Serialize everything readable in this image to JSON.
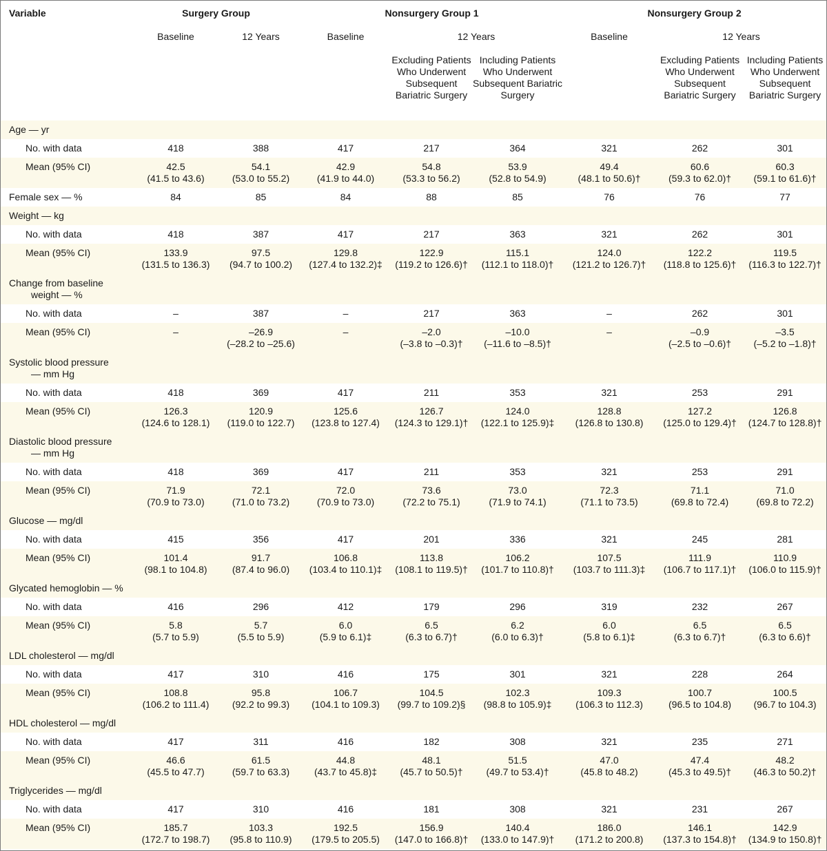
{
  "header": {
    "variable": "Variable",
    "groups": [
      "Surgery Group",
      "Nonsurgery Group 1",
      "Nonsurgery Group 2"
    ],
    "baseline": "Baseline",
    "twelve_years": "12 Years",
    "excluding": "Excluding Patients Who Underwent Subsequent Bariatric Surgery",
    "including": "Including Patients Who Underwent Subsequent Bariatric Surgery"
  },
  "rows": [
    {
      "type": "section",
      "label": "Age — yr"
    },
    {
      "type": "n",
      "label": "No. with data",
      "values": [
        "418",
        "388",
        "417",
        "217",
        "364",
        "321",
        "262",
        "301"
      ]
    },
    {
      "type": "mean",
      "label": "Mean (95% CI)",
      "values": [
        "42.5",
        "54.1",
        "42.9",
        "54.8",
        "53.9",
        "49.4",
        "60.6",
        "60.3"
      ],
      "ci": [
        "(41.5 to 43.6)",
        "(53.0 to 55.2)",
        "(41.9 to 44.0)",
        "(53.3 to 56.2)",
        "(52.8 to 54.9)",
        "(48.1 to 50.6)†",
        "(59.3 to 62.0)†",
        "(59.1 to 61.6)†"
      ]
    },
    {
      "type": "single",
      "label": "Female sex — %",
      "values": [
        "84",
        "85",
        "84",
        "88",
        "85",
        "76",
        "76",
        "77"
      ]
    },
    {
      "type": "section",
      "label": "Weight — kg"
    },
    {
      "type": "n",
      "label": "No. with data",
      "values": [
        "418",
        "387",
        "417",
        "217",
        "363",
        "321",
        "262",
        "301"
      ]
    },
    {
      "type": "mean",
      "label": "Mean (95% CI)",
      "values": [
        "133.9",
        "97.5",
        "129.8",
        "122.9",
        "115.1",
        "124.0",
        "122.2",
        "119.5"
      ],
      "ci": [
        "(131.5 to 136.3)",
        "(94.7 to 100.2)",
        "(127.4 to 132.2)‡",
        "(119.2 to 126.6)†",
        "(112.1 to 118.0)†",
        "(121.2 to 126.7)†",
        "(118.8 to 125.6)†",
        "(116.3 to 122.7)†"
      ]
    },
    {
      "type": "section2",
      "label": "Change from baseline",
      "label2": "weight — %"
    },
    {
      "type": "n",
      "label": "No. with data",
      "values": [
        "–",
        "387",
        "–",
        "217",
        "363",
        "–",
        "262",
        "301"
      ]
    },
    {
      "type": "mean",
      "label": "Mean (95% CI)",
      "values": [
        "–",
        "–26.9",
        "–",
        "–2.0",
        "–10.0",
        "–",
        "–0.9",
        "–3.5"
      ],
      "ci": [
        "",
        "(–28.2 to –25.6)",
        "",
        "(–3.8 to –0.3)†",
        "(–11.6 to –8.5)†",
        "",
        "(–2.5 to –0.6)†",
        "(–5.2 to –1.8)†"
      ]
    },
    {
      "type": "section2",
      "label": "Systolic blood pressure",
      "label2": "— mm Hg"
    },
    {
      "type": "n",
      "label": "No. with data",
      "values": [
        "418",
        "369",
        "417",
        "211",
        "353",
        "321",
        "253",
        "291"
      ]
    },
    {
      "type": "mean",
      "label": "Mean (95% CI)",
      "values": [
        "126.3",
        "120.9",
        "125.6",
        "126.7",
        "124.0",
        "128.8",
        "127.2",
        "126.8"
      ],
      "ci": [
        "(124.6 to 128.1)",
        "(119.0 to 122.7)",
        "(123.8 to 127.4)",
        "(124.3 to 129.1)†",
        "(122.1 to 125.9)‡",
        "(126.8 to 130.8)",
        "(125.0 to 129.4)†",
        "(124.7 to 128.8)†"
      ]
    },
    {
      "type": "section2",
      "label": "Diastolic blood pressure",
      "label2": "— mm Hg"
    },
    {
      "type": "n",
      "label": "No. with data",
      "values": [
        "418",
        "369",
        "417",
        "211",
        "353",
        "321",
        "253",
        "291"
      ]
    },
    {
      "type": "mean",
      "label": "Mean (95% CI)",
      "values": [
        "71.9",
        "72.1",
        "72.0",
        "73.6",
        "73.0",
        "72.3",
        "71.1",
        "71.0"
      ],
      "ci": [
        "(70.9 to 73.0)",
        "(71.0 to 73.2)",
        "(70.9 to 73.0)",
        "(72.2 to 75.1)",
        "(71.9 to 74.1)",
        "(71.1 to 73.5)",
        "(69.8 to 72.4)",
        "(69.8 to 72.2)"
      ]
    },
    {
      "type": "section",
      "label": "Glucose — mg/dl"
    },
    {
      "type": "n",
      "label": "No. with data",
      "values": [
        "415",
        "356",
        "417",
        "201",
        "336",
        "321",
        "245",
        "281"
      ]
    },
    {
      "type": "mean",
      "label": "Mean (95% CI)",
      "values": [
        "101.4",
        "91.7",
        "106.8",
        "113.8",
        "106.2",
        "107.5",
        "111.9",
        "110.9"
      ],
      "ci": [
        "(98.1 to 104.8)",
        "(87.4 to 96.0)",
        "(103.4 to 110.1)‡",
        "(108.1 to 119.5)†",
        "(101.7 to 110.8)†",
        "(103.7 to 111.3)‡",
        "(106.7 to 117.1)†",
        "(106.0 to 115.9)†"
      ]
    },
    {
      "type": "section",
      "label": "Glycated hemoglobin — %"
    },
    {
      "type": "n",
      "label": "No. with data",
      "values": [
        "416",
        "296",
        "412",
        "179",
        "296",
        "319",
        "232",
        "267"
      ]
    },
    {
      "type": "mean",
      "label": "Mean (95% CI)",
      "values": [
        "5.8",
        "5.7",
        "6.0",
        "6.5",
        "6.2",
        "6.0",
        "6.5",
        "6.5"
      ],
      "ci": [
        "(5.7 to 5.9)",
        "(5.5 to 5.9)",
        "(5.9 to 6.1)‡",
        "(6.3 to 6.7)†",
        "(6.0 to 6.3)†",
        "(5.8 to 6.1)‡",
        "(6.3 to 6.7)†",
        "(6.3 to 6.6)†"
      ]
    },
    {
      "type": "section",
      "label": "LDL cholesterol — mg/dl"
    },
    {
      "type": "n",
      "label": "No. with data",
      "values": [
        "417",
        "310",
        "416",
        "175",
        "301",
        "321",
        "228",
        "264"
      ]
    },
    {
      "type": "mean",
      "label": "Mean (95% CI)",
      "values": [
        "108.8",
        "95.8",
        "106.7",
        "104.5",
        "102.3",
        "109.3",
        "100.7",
        "100.5"
      ],
      "ci": [
        "(106.2 to 111.4)",
        "(92.2 to 99.3)",
        "(104.1 to 109.3)",
        "(99.7 to 109.2)§",
        "(98.8 to 105.9)‡",
        "(106.3 to 112.3)",
        "(96.5 to 104.8)",
        "(96.7 to 104.3)"
      ]
    },
    {
      "type": "section",
      "label": "HDL cholesterol — mg/dl"
    },
    {
      "type": "n",
      "label": "No. with data",
      "values": [
        "417",
        "311",
        "416",
        "182",
        "308",
        "321",
        "235",
        "271"
      ]
    },
    {
      "type": "mean",
      "label": "Mean (95% CI)",
      "values": [
        "46.6",
        "61.5",
        "44.8",
        "48.1",
        "51.5",
        "47.0",
        "47.4",
        "48.2"
      ],
      "ci": [
        "(45.5 to 47.7)",
        "(59.7 to 63.3)",
        "(43.7 to 45.8)‡",
        "(45.7 to 50.5)†",
        "(49.7 to 53.4)†",
        "(45.8 to 48.2)",
        "(45.3 to 49.5)†",
        "(46.3 to 50.2)†"
      ]
    },
    {
      "type": "section",
      "label": "Triglycerides — mg/dl"
    },
    {
      "type": "n",
      "label": "No. with data",
      "values": [
        "417",
        "310",
        "416",
        "181",
        "308",
        "321",
        "231",
        "267"
      ]
    },
    {
      "type": "mean",
      "label": "Mean (95% CI)",
      "values": [
        "185.7",
        "103.3",
        "192.5",
        "156.9",
        "140.4",
        "186.0",
        "146.1",
        "142.9"
      ],
      "ci": [
        "(172.7 to 198.7)",
        "(95.8 to 110.9)",
        "(179.5 to 205.5)",
        "(147.0 to 166.8)†",
        "(133.0 to 147.9)†",
        "(171.2 to 200.8)",
        "(137.3 to 154.8)†",
        "(134.9 to 150.8)†"
      ]
    }
  ]
}
